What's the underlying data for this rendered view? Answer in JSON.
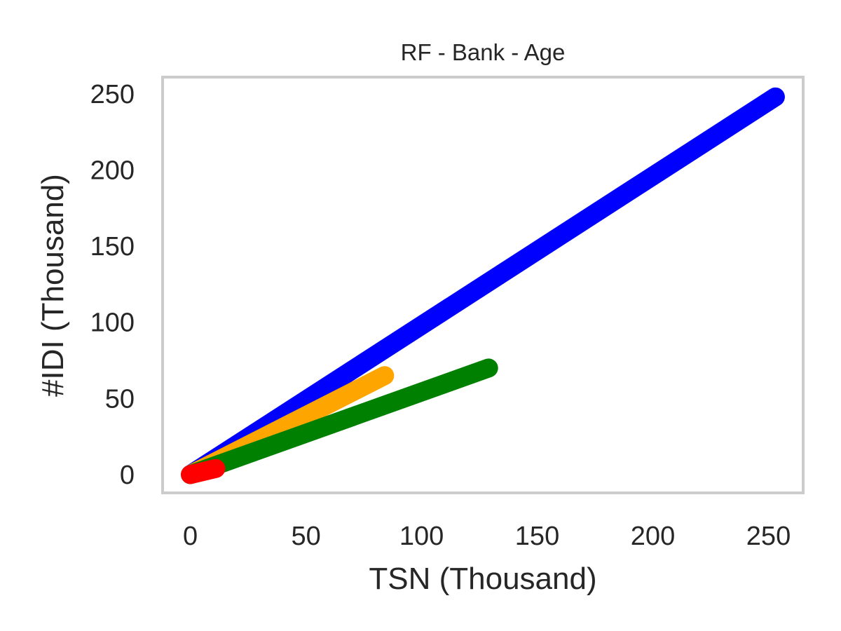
{
  "chart_data": {
    "type": "line",
    "title": "RF - Bank - Age",
    "xlabel": "TSN (Thousand)",
    "ylabel": "#IDI (Thousand)",
    "xlim": [
      -12,
      265
    ],
    "ylim": [
      -12,
      261
    ],
    "xticks": [
      0,
      50,
      100,
      150,
      200,
      250
    ],
    "yticks": [
      0,
      50,
      100,
      150,
      200,
      250
    ],
    "grid": false,
    "series": [
      {
        "color": "#0000ff",
        "x": [
          0,
          253
        ],
        "y": [
          0,
          248
        ]
      },
      {
        "color": "#ffa500",
        "x": [
          0,
          84
        ],
        "y": [
          0,
          65
        ]
      },
      {
        "color": "#008000",
        "x": [
          0,
          129
        ],
        "y": [
          0,
          70
        ]
      },
      {
        "color": "#ff0000",
        "x": [
          0,
          11
        ],
        "y": [
          0,
          4
        ]
      }
    ]
  }
}
